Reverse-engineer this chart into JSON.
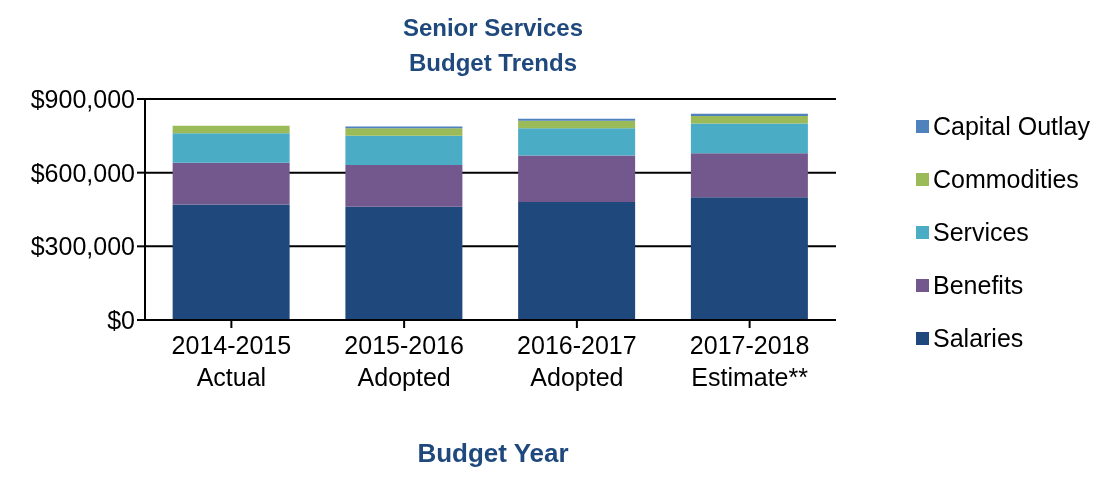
{
  "chart_data": {
    "type": "bar",
    "title": "Senior Services\nBudget Trends",
    "xlabel": "Budget Year",
    "categories": [
      "2014-2015\nActual",
      "2015-2016\nAdopted",
      "2016-2017\nAdopted",
      "2017-2018\nEstimate**"
    ],
    "stacked": true,
    "ylim": [
      0,
      900000
    ],
    "yticks": [
      {
        "value": 0,
        "label": "$0"
      },
      {
        "value": 300000,
        "label": "$300,000"
      },
      {
        "value": 600000,
        "label": "$600,000"
      },
      {
        "value": 900000,
        "label": "$900,000"
      }
    ],
    "grid": "y",
    "legend": "right",
    "series": [
      {
        "name": "Salaries",
        "color": "#1f497d",
        "values": [
          470000,
          461000,
          481000,
          500000
        ]
      },
      {
        "name": "Benefits",
        "color": "#72588d",
        "values": [
          170000,
          170000,
          189000,
          179000
        ]
      },
      {
        "name": "Services",
        "color": "#4bacc6",
        "values": [
          121000,
          119000,
          111000,
          121000
        ]
      },
      {
        "name": "Commodities",
        "color": "#9bbb59",
        "values": [
          30000,
          31000,
          30000,
          31000
        ]
      },
      {
        "name": "Capital Outlay",
        "color": "#4f81bd",
        "values": [
          0,
          7000,
          9000,
          9000
        ]
      }
    ]
  }
}
